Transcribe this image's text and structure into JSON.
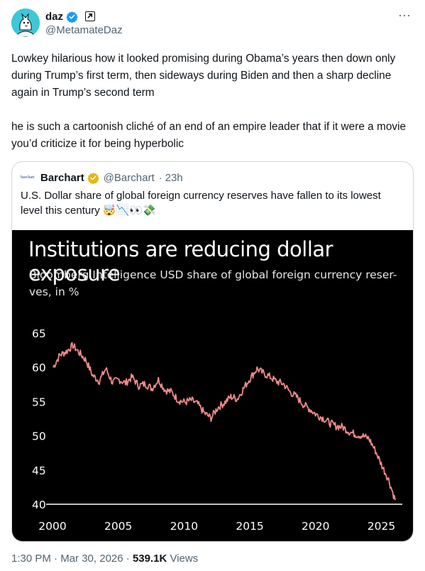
{
  "author": {
    "name": "daz",
    "handle": "@MetamateDaz",
    "avatar_icon": "cartoon-cat-avatar",
    "verified_icon": "blue-verified-badge-icon",
    "affiliate_icon": "external-arrow-icon"
  },
  "more_label": "···",
  "tweet_text": {
    "paragraph1": "Lowkey hilarious how it looked promising during Obama’s years then down only during Trump’s first term, then sideways during Biden and then a sharp decline again in Trump’s second term",
    "paragraph2": "he is such a cartoonish cliché of an end of an empire leader that if it were a movie you’d criticize it for being hyperbolic"
  },
  "quote": {
    "logo_text": "barchart",
    "name": "Barchart",
    "verified_icon": "gold-verified-badge-icon",
    "handle": "@Barchart",
    "separator": "·",
    "time": "23h",
    "text": "U.S. Dollar share of global foreign currency reserves have fallen to its lowest level this century 🤯📉👀💸"
  },
  "chart_data": {
    "type": "line",
    "title": "Institutions are reducing dollar exposure",
    "subtitle": "Bloomberg Intelligence USD share of global foreign currency reser-ves, in %",
    "xlim": [
      2000,
      2026
    ],
    "ylim": [
      40,
      65
    ],
    "x_ticks": [
      "2000",
      "2005",
      "2010",
      "2015",
      "2020",
      "2025"
    ],
    "y_ticks": [
      "65",
      "60",
      "55",
      "50",
      "45",
      "40"
    ],
    "line_color": "#f08a8a",
    "background": "#000000",
    "series": [
      {
        "x": [
          2000,
          2000.5,
          2001,
          2001.5,
          2002,
          2002.5,
          2003,
          2003.5,
          2004,
          2004.5,
          2005,
          2005.5,
          2006,
          2006.5,
          2007,
          2007.5,
          2008,
          2008.5,
          2009,
          2009.5,
          2010,
          2010.5,
          2011,
          2011.5,
          2012,
          2012.5,
          2013,
          2013.5,
          2014,
          2014.5,
          2015,
          2015.5,
          2016,
          2016.5,
          2017,
          2017.5,
          2018,
          2018.5,
          2019,
          2019.5,
          2020,
          2020.5,
          2021,
          2021.5,
          2022,
          2022.5,
          2023,
          2023.5,
          2024,
          2024.5,
          2025,
          2025.5,
          2026
        ],
        "y": [
          60.0,
          61.8,
          62.3,
          63.2,
          62.1,
          61.0,
          58.8,
          58.0,
          59.8,
          57.8,
          58.2,
          57.7,
          58.6,
          57.3,
          57.6,
          56.9,
          58.2,
          56.7,
          56.4,
          55.2,
          54.9,
          55.2,
          54.6,
          53.3,
          52.6,
          54.1,
          54.8,
          55.7,
          55.4,
          57.0,
          58.5,
          59.8,
          59.1,
          58.6,
          57.9,
          57.6,
          56.4,
          55.7,
          54.6,
          53.9,
          53.1,
          52.6,
          51.9,
          51.4,
          51.3,
          50.6,
          50.2,
          50.0,
          49.6,
          47.8,
          45.6,
          43.6,
          40.6
        ]
      }
    ]
  },
  "footer": {
    "time": "1:30 PM",
    "sep1": " · ",
    "date": "Mar 30, 2026",
    "sep2": " · ",
    "views_count": "539.1K",
    "views_label": " Views"
  }
}
